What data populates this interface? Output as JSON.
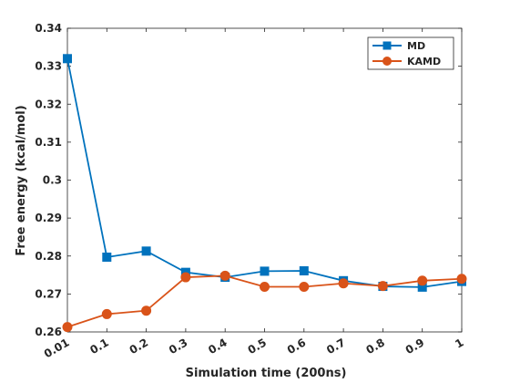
{
  "chart_data": {
    "type": "line",
    "xlabel": "Simulation time (200ns)",
    "ylabel": "Free energy (kcal/mol)",
    "categories": [
      "0.01",
      "0.1",
      "0.2",
      "0.3",
      "0.4",
      "0.5",
      "0.6",
      "0.7",
      "0.8",
      "0.9",
      "1"
    ],
    "ylim": [
      0.26,
      0.34
    ],
    "yticks": [
      "0.26",
      "0.27",
      "0.28",
      "0.29",
      "0.3",
      "0.31",
      "0.32",
      "0.33",
      "0.34"
    ],
    "grid": false,
    "legend_position": "top-right",
    "series": [
      {
        "name": "MD",
        "color": "#0072BD",
        "marker": "square",
        "values": [
          0.332,
          0.2797,
          0.2813,
          0.2757,
          0.2744,
          0.276,
          0.2761,
          0.2735,
          0.272,
          0.2718,
          0.2733
        ]
      },
      {
        "name": "KAMD",
        "color": "#D95319",
        "marker": "circle",
        "values": [
          0.2613,
          0.2647,
          0.2656,
          0.2744,
          0.2748,
          0.2719,
          0.2719,
          0.2728,
          0.2721,
          0.2735,
          0.274
        ]
      }
    ]
  }
}
